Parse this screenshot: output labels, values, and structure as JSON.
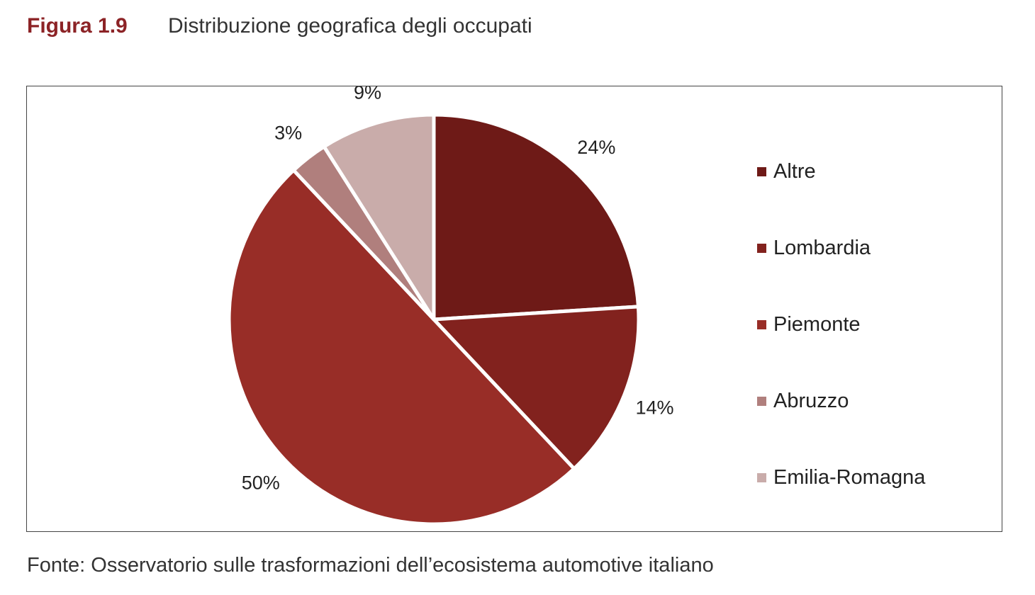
{
  "figure": {
    "number": "Figura 1.9",
    "title": "Distribuzione geografica degli occupati",
    "source": "Fonte: Osservatorio sulle trasformazioni dell’ecosistema automotive italiano"
  },
  "chart_data": {
    "type": "pie",
    "title": "Distribuzione geografica degli occupati",
    "legend_position": "right",
    "slices": [
      {
        "name": "Altre",
        "value": 24,
        "label": "24%",
        "color": "#6e1a17"
      },
      {
        "name": "Lombardia",
        "value": 14,
        "label": "14%",
        "color": "#82221e"
      },
      {
        "name": "Piemonte",
        "value": 50,
        "label": "50%",
        "color": "#982d27"
      },
      {
        "name": "Abruzzo",
        "value": 3,
        "label": "3%",
        "color": "#b07f7d"
      },
      {
        "name": "Emilia-Romagna",
        "value": 9,
        "label": "9%",
        "color": "#c9acaa"
      }
    ]
  }
}
